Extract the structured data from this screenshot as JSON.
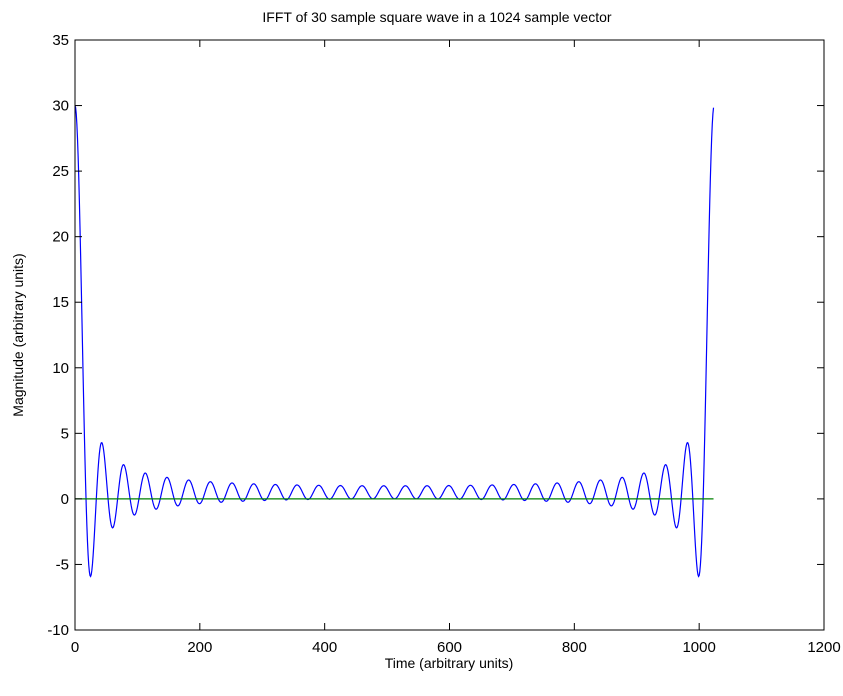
{
  "chart_data": {
    "type": "line",
    "title": "IFFT of 30 sample square wave in a 1024 sample vector",
    "xlabel": "Time (arbitrary units)",
    "ylabel": "Magnitude (arbitrary units)",
    "xlim": [
      0,
      1200
    ],
    "ylim": [
      -10,
      35
    ],
    "xticks": [
      0,
      200,
      400,
      600,
      800,
      1000,
      1200
    ],
    "xtick_labels": [
      "0",
      "200",
      "400",
      "600",
      "800",
      "1000",
      "1200"
    ],
    "yticks": [
      -10,
      -5,
      0,
      5,
      10,
      15,
      20,
      25,
      30,
      35
    ],
    "ytick_labels": [
      "-10",
      "-5",
      "0",
      "5",
      "10",
      "15",
      "20",
      "25",
      "30",
      "35"
    ],
    "grid": false,
    "series": [
      {
        "color": "#0000ff",
        "description": "real part of IFFT of a 30-sample rectangular pulse (periodic sinc / Dirichlet kernel), peak ≈30 at x=0 and x≈1023, first minimum ≈-6.2, side-lobe period ≈34 samples",
        "generator": {
          "kind": "dirichlet",
          "n_samples": 1024,
          "pulse_width": 30
        }
      },
      {
        "color": "#008000",
        "description": "imaginary part, essentially zero across the vector",
        "x": [
          0,
          1023
        ],
        "y": [
          0,
          0
        ]
      }
    ]
  }
}
